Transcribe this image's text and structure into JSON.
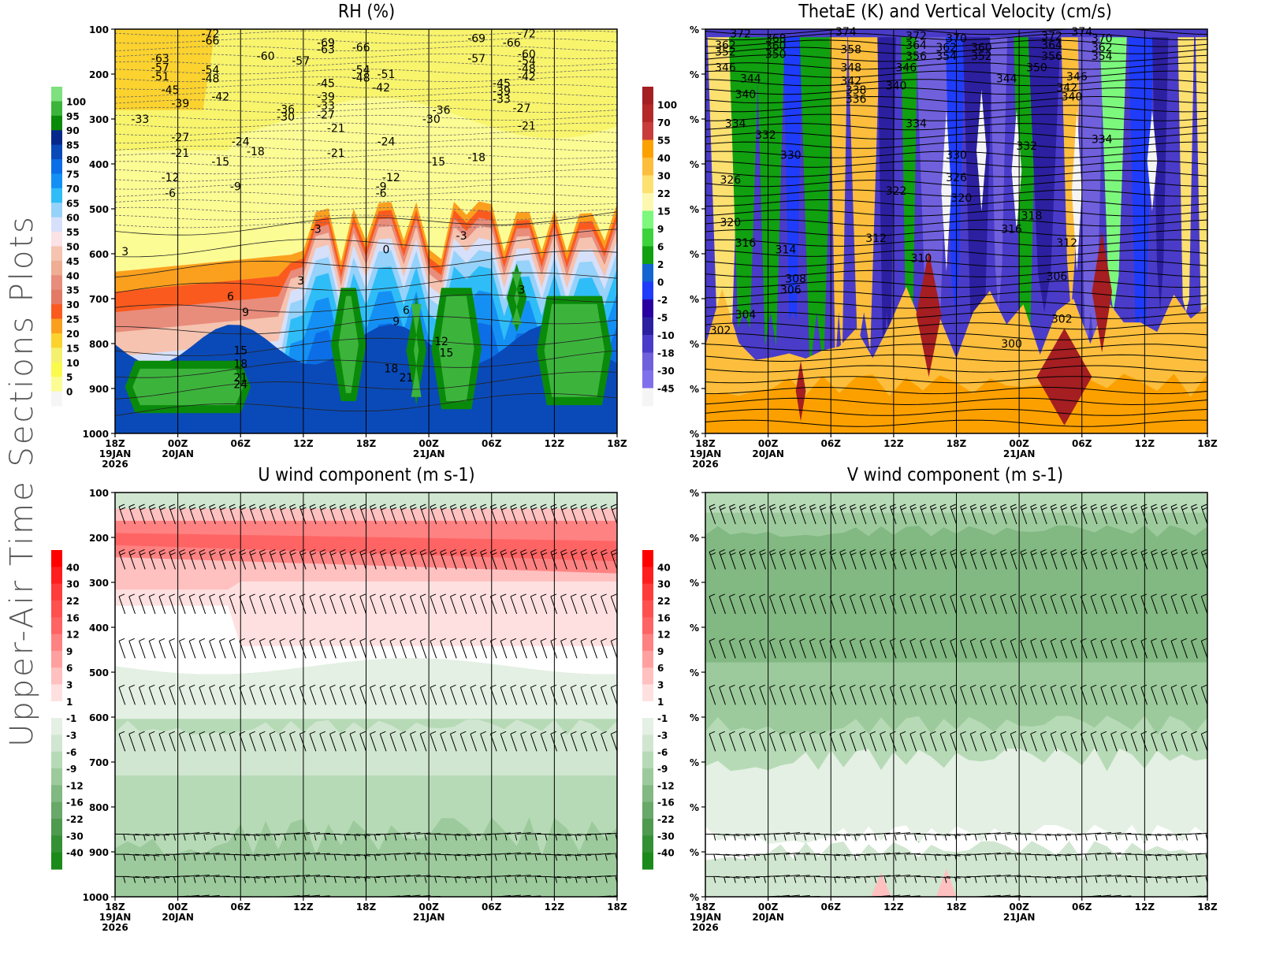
{
  "side_title": "Upper-Air Time Sections Plots",
  "x_ticks": [
    {
      "hour": "18Z",
      "date": "19JAN",
      "year": "2026"
    },
    {
      "hour": "00Z",
      "date": "20JAN",
      "year": ""
    },
    {
      "hour": "06Z",
      "date": "",
      "year": ""
    },
    {
      "hour": "12Z",
      "date": "",
      "year": ""
    },
    {
      "hour": "18Z",
      "date": "",
      "year": ""
    },
    {
      "hour": "00Z",
      "date": "21JAN",
      "year": ""
    },
    {
      "hour": "06Z",
      "date": "",
      "year": ""
    },
    {
      "hour": "12Z",
      "date": "",
      "year": ""
    },
    {
      "hour": "18Z",
      "date": "",
      "year": ""
    }
  ],
  "chart_data": [
    {
      "id": "rh",
      "type": "heatmap",
      "title": "RH (%)",
      "xlabel": "",
      "ylabel": "",
      "y_ticks": [
        "100",
        "200",
        "300",
        "400",
        "500",
        "600",
        "700",
        "800",
        "900",
        "1000"
      ],
      "ylim": [
        100,
        1000
      ],
      "colorbar": {
        "labels": [
          "100",
          "95",
          "90",
          "85",
          "80",
          "75",
          "70",
          "65",
          "60",
          "55",
          "50",
          "45",
          "40",
          "35",
          "30",
          "25",
          "20",
          "15",
          "10",
          "5",
          "0"
        ],
        "colors": [
          "#7ee07e",
          "#3cb43c",
          "#0a8a0a",
          "#05288a",
          "#0a4ab8",
          "#0c6ee6",
          "#1490f5",
          "#2fbdf8",
          "#96d2fa",
          "#d6e0fa",
          "#fbe2e6",
          "#f5c3b0",
          "#efad93",
          "#e88c7c",
          "#e27a66",
          "#fb5a1e",
          "#fba01e",
          "#fbd22e",
          "#f5f06e",
          "#fafa4e",
          "#fcfc94",
          "#f5f5f5"
        ]
      },
      "contour_labels": [
        {
          "t": "-72",
          "x": 0.19,
          "p": 110
        },
        {
          "t": "-66",
          "x": 0.19,
          "p": 125
        },
        {
          "t": "-63",
          "x": 0.09,
          "p": 165
        },
        {
          "t": "-57",
          "x": 0.09,
          "p": 185
        },
        {
          "t": "-51",
          "x": 0.09,
          "p": 205
        },
        {
          "t": "-54",
          "x": 0.19,
          "p": 190
        },
        {
          "t": "-48",
          "x": 0.19,
          "p": 210
        },
        {
          "t": "-45",
          "x": 0.11,
          "p": 235
        },
        {
          "t": "-42",
          "x": 0.21,
          "p": 250
        },
        {
          "t": "-39",
          "x": 0.13,
          "p": 265
        },
        {
          "t": "-33",
          "x": 0.05,
          "p": 300
        },
        {
          "t": "-27",
          "x": 0.13,
          "p": 340
        },
        {
          "t": "-21",
          "x": 0.13,
          "p": 375
        },
        {
          "t": "-60",
          "x": 0.3,
          "p": 160
        },
        {
          "t": "-57",
          "x": 0.37,
          "p": 170
        },
        {
          "t": "-69",
          "x": 0.42,
          "p": 130
        },
        {
          "t": "-63",
          "x": 0.42,
          "p": 145
        },
        {
          "t": "-66",
          "x": 0.49,
          "p": 140
        },
        {
          "t": "-54",
          "x": 0.49,
          "p": 190
        },
        {
          "t": "-48",
          "x": 0.49,
          "p": 208
        },
        {
          "t": "-51",
          "x": 0.54,
          "p": 200
        },
        {
          "t": "-42",
          "x": 0.53,
          "p": 230
        },
        {
          "t": "-45",
          "x": 0.42,
          "p": 220
        },
        {
          "t": "-39",
          "x": 0.42,
          "p": 250
        },
        {
          "t": "-36",
          "x": 0.34,
          "p": 278
        },
        {
          "t": "-33",
          "x": 0.42,
          "p": 270
        },
        {
          "t": "-30",
          "x": 0.34,
          "p": 295
        },
        {
          "t": "-27",
          "x": 0.42,
          "p": 290
        },
        {
          "t": "-21",
          "x": 0.44,
          "p": 320
        },
        {
          "t": "-24",
          "x": 0.25,
          "p": 350
        },
        {
          "t": "-18",
          "x": 0.28,
          "p": 372
        },
        {
          "t": "-15",
          "x": 0.21,
          "p": 395
        },
        {
          "t": "-12",
          "x": 0.11,
          "p": 430
        },
        {
          "t": "-9",
          "x": 0.24,
          "p": 450
        },
        {
          "t": "-6",
          "x": 0.11,
          "p": 465
        },
        {
          "t": "-24",
          "x": 0.54,
          "p": 350
        },
        {
          "t": "-21",
          "x": 0.44,
          "p": 375
        },
        {
          "t": "-12",
          "x": 0.55,
          "p": 430
        },
        {
          "t": "-9",
          "x": 0.53,
          "p": 450
        },
        {
          "t": "-6",
          "x": 0.53,
          "p": 465
        },
        {
          "t": "-36",
          "x": 0.65,
          "p": 280
        },
        {
          "t": "-30",
          "x": 0.63,
          "p": 300
        },
        {
          "t": "-15",
          "x": 0.64,
          "p": 395
        },
        {
          "t": "-18",
          "x": 0.72,
          "p": 385
        },
        {
          "t": "-69",
          "x": 0.72,
          "p": 120
        },
        {
          "t": "-66",
          "x": 0.79,
          "p": 130
        },
        {
          "t": "-72",
          "x": 0.82,
          "p": 110
        },
        {
          "t": "-60",
          "x": 0.82,
          "p": 155
        },
        {
          "t": "-54",
          "x": 0.82,
          "p": 170
        },
        {
          "t": "-48",
          "x": 0.82,
          "p": 188
        },
        {
          "t": "-42",
          "x": 0.82,
          "p": 205
        },
        {
          "t": "-57",
          "x": 0.72,
          "p": 165
        },
        {
          "t": "-45",
          "x": 0.77,
          "p": 220
        },
        {
          "t": "-39",
          "x": 0.77,
          "p": 238
        },
        {
          "t": "-33",
          "x": 0.77,
          "p": 255
        },
        {
          "t": "-27",
          "x": 0.81,
          "p": 275
        },
        {
          "t": "-21",
          "x": 0.82,
          "p": 315
        },
        {
          "t": "-3",
          "x": 0.4,
          "p": 545
        },
        {
          "t": "-3",
          "x": 0.69,
          "p": 560
        },
        {
          "t": "0",
          "x": 0.54,
          "p": 590
        },
        {
          "t": "3",
          "x": 0.02,
          "p": 595
        },
        {
          "t": "3",
          "x": 0.37,
          "p": 660
        },
        {
          "t": "6",
          "x": 0.23,
          "p": 695
        },
        {
          "t": "9",
          "x": 0.26,
          "p": 730
        },
        {
          "t": "6",
          "x": 0.58,
          "p": 725
        },
        {
          "t": "9",
          "x": 0.56,
          "p": 750
        },
        {
          "t": "12",
          "x": 0.65,
          "p": 795
        },
        {
          "t": "15",
          "x": 0.25,
          "p": 815
        },
        {
          "t": "18",
          "x": 0.25,
          "p": 845
        },
        {
          "t": "21",
          "x": 0.25,
          "p": 875
        },
        {
          "t": "24",
          "x": 0.25,
          "p": 890
        },
        {
          "t": "15",
          "x": 0.66,
          "p": 820
        },
        {
          "t": "18",
          "x": 0.55,
          "p": 855
        },
        {
          "t": "21",
          "x": 0.58,
          "p": 875
        },
        {
          "t": "3",
          "x": 0.81,
          "p": 680
        }
      ]
    },
    {
      "id": "thetae",
      "type": "heatmap",
      "title": "ThetaE (K) and Vertical Velocity (cm/s)",
      "xlabel": "",
      "ylabel": "",
      "y_ticks": [
        "%",
        "%",
        "%",
        "%",
        "%",
        "%",
        "%",
        "%",
        "%",
        "%"
      ],
      "colorbar": {
        "labels": [
          "100",
          "70",
          "55",
          "40",
          "30",
          "22",
          "15",
          "9",
          "6",
          "2",
          "0",
          "-2",
          "-5",
          "-10",
          "-18",
          "-30",
          "-45"
        ],
        "colors": [
          "#a41e22",
          "#b52828",
          "#c83c3c",
          "#fca000",
          "#fcbe3c",
          "#fce070",
          "#fcf8b0",
          "#7cf87c",
          "#3cd23c",
          "#10a010",
          "#1464d2",
          "#1e3cfa",
          "#2800a0",
          "#2c20a0",
          "#4a3cc8",
          "#7060dc",
          "#8070ec",
          "#f5f5f5"
        ]
      },
      "contour_labels": [
        {
          "t": "372",
          "x": 0.07,
          "p": 110
        },
        {
          "t": "368",
          "x": 0.14,
          "p": 120
        },
        {
          "t": "362",
          "x": 0.04,
          "p": 135
        },
        {
          "t": "360",
          "x": 0.14,
          "p": 137
        },
        {
          "t": "352",
          "x": 0.04,
          "p": 150
        },
        {
          "t": "350",
          "x": 0.14,
          "p": 155
        },
        {
          "t": "346",
          "x": 0.04,
          "p": 185
        },
        {
          "t": "344",
          "x": 0.09,
          "p": 210
        },
        {
          "t": "340",
          "x": 0.08,
          "p": 245
        },
        {
          "t": "334",
          "x": 0.06,
          "p": 310
        },
        {
          "t": "332",
          "x": 0.12,
          "p": 335
        },
        {
          "t": "330",
          "x": 0.17,
          "p": 380
        },
        {
          "t": "326",
          "x": 0.05,
          "p": 435
        },
        {
          "t": "320",
          "x": 0.05,
          "p": 530
        },
        {
          "t": "316",
          "x": 0.08,
          "p": 575
        },
        {
          "t": "314",
          "x": 0.16,
          "p": 590
        },
        {
          "t": "308",
          "x": 0.18,
          "p": 655
        },
        {
          "t": "306",
          "x": 0.17,
          "p": 680
        },
        {
          "t": "304",
          "x": 0.08,
          "p": 735
        },
        {
          "t": "302",
          "x": 0.03,
          "p": 770
        },
        {
          "t": "374",
          "x": 0.28,
          "p": 105
        },
        {
          "t": "358",
          "x": 0.29,
          "p": 145
        },
        {
          "t": "348",
          "x": 0.29,
          "p": 185
        },
        {
          "t": "342",
          "x": 0.29,
          "p": 215
        },
        {
          "t": "338",
          "x": 0.3,
          "p": 235
        },
        {
          "t": "336",
          "x": 0.3,
          "p": 255
        },
        {
          "t": "372",
          "x": 0.42,
          "p": 115
        },
        {
          "t": "364",
          "x": 0.42,
          "p": 135
        },
        {
          "t": "356",
          "x": 0.42,
          "p": 160
        },
        {
          "t": "370",
          "x": 0.5,
          "p": 120
        },
        {
          "t": "362",
          "x": 0.48,
          "p": 140
        },
        {
          "t": "354",
          "x": 0.48,
          "p": 160
        },
        {
          "t": "360",
          "x": 0.55,
          "p": 140
        },
        {
          "t": "352",
          "x": 0.55,
          "p": 160
        },
        {
          "t": "346",
          "x": 0.4,
          "p": 185
        },
        {
          "t": "340",
          "x": 0.38,
          "p": 225
        },
        {
          "t": "334",
          "x": 0.42,
          "p": 310
        },
        {
          "t": "330",
          "x": 0.5,
          "p": 380
        },
        {
          "t": "326",
          "x": 0.5,
          "p": 430
        },
        {
          "t": "322",
          "x": 0.38,
          "p": 460
        },
        {
          "t": "320",
          "x": 0.51,
          "p": 475
        },
        {
          "t": "312",
          "x": 0.34,
          "p": 565
        },
        {
          "t": "310",
          "x": 0.43,
          "p": 610
        },
        {
          "t": "374",
          "x": 0.75,
          "p": 105
        },
        {
          "t": "372",
          "x": 0.69,
          "p": 115
        },
        {
          "t": "364",
          "x": 0.69,
          "p": 135
        },
        {
          "t": "356",
          "x": 0.69,
          "p": 160
        },
        {
          "t": "350",
          "x": 0.66,
          "p": 185
        },
        {
          "t": "344",
          "x": 0.6,
          "p": 210
        },
        {
          "t": "370",
          "x": 0.79,
          "p": 120
        },
        {
          "t": "362",
          "x": 0.79,
          "p": 140
        },
        {
          "t": "354",
          "x": 0.79,
          "p": 160
        },
        {
          "t": "346",
          "x": 0.74,
          "p": 205
        },
        {
          "t": "342",
          "x": 0.72,
          "p": 230
        },
        {
          "t": "340",
          "x": 0.73,
          "p": 250
        },
        {
          "t": "334",
          "x": 0.79,
          "p": 345
        },
        {
          "t": "332",
          "x": 0.64,
          "p": 360
        },
        {
          "t": "318",
          "x": 0.65,
          "p": 515
        },
        {
          "t": "316",
          "x": 0.61,
          "p": 545
        },
        {
          "t": "312",
          "x": 0.72,
          "p": 575
        },
        {
          "t": "306",
          "x": 0.7,
          "p": 650
        },
        {
          "t": "302",
          "x": 0.71,
          "p": 745
        },
        {
          "t": "300",
          "x": 0.61,
          "p": 800
        }
      ]
    },
    {
      "id": "uwind",
      "type": "heatmap",
      "title": "U wind component (m s-1)",
      "xlabel": "",
      "ylabel": "",
      "y_ticks": [
        "100",
        "200",
        "300",
        "400",
        "500",
        "600",
        "700",
        "800",
        "900",
        "1000"
      ],
      "ylim": [
        100,
        1000
      ],
      "colorbar": {
        "labels": [
          "40",
          "30",
          "22",
          "16",
          "12",
          "9",
          "6",
          "3",
          "1",
          "-1",
          "-3",
          "-6",
          "-9",
          "-12",
          "-16",
          "-22",
          "-30",
          "-40"
        ],
        "colors": [
          "#ff0000",
          "#ff1e1e",
          "#ff3c3c",
          "#ff5050",
          "#ff6464",
          "#ff8282",
          "#ffa0a0",
          "#ffc0c0",
          "#ffe0e0",
          "#ffffff",
          "#e4f0e4",
          "#d0e6d0",
          "#b6dab6",
          "#9cca9c",
          "#82b882",
          "#68a868",
          "#4e9a4e",
          "#349034",
          "#1a8a1a"
        ]
      }
    },
    {
      "id": "vwind",
      "type": "heatmap",
      "title": "V wind component (m s-1)",
      "xlabel": "",
      "ylabel": "",
      "y_ticks": [
        "%",
        "%",
        "%",
        "%",
        "%",
        "%",
        "%",
        "%",
        "%",
        "%"
      ],
      "colorbar": {
        "labels": [
          "40",
          "30",
          "22",
          "16",
          "12",
          "9",
          "6",
          "3",
          "1",
          "-1",
          "-3",
          "-6",
          "-9",
          "-12",
          "-16",
          "-22",
          "-30",
          "-40"
        ],
        "colors": [
          "#ff0000",
          "#ff1e1e",
          "#ff3c3c",
          "#ff5050",
          "#ff6464",
          "#ff8282",
          "#ffa0a0",
          "#ffc0c0",
          "#ffe0e0",
          "#ffffff",
          "#e4f0e4",
          "#d0e6d0",
          "#b6dab6",
          "#9cca9c",
          "#82b882",
          "#68a868",
          "#4e9a4e",
          "#349034",
          "#1a8a1a"
        ]
      }
    }
  ]
}
